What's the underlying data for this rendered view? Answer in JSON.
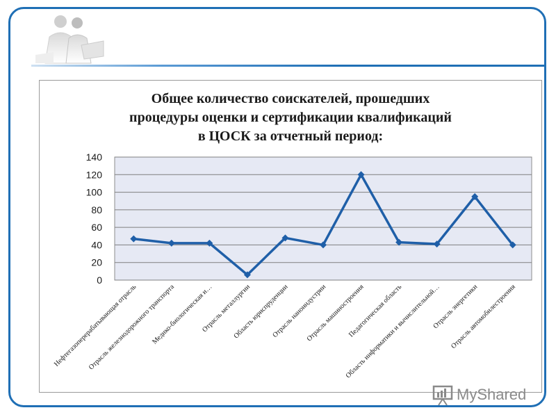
{
  "watermark": {
    "text": "MyShared"
  },
  "chart_data": {
    "type": "line",
    "title_lines": [
      "Общее количество соискателей, прошедших",
      "процедуры оценки и сертификации квалификаций",
      "в ЦОСК за отчетный период:"
    ],
    "categories": [
      "Нефтегазоперерабатывающая отрасль",
      "Отрасль железнодорожного транспорта",
      "Медико-биологическая и…",
      "Отрасль металлургии",
      "Область юриспруденции",
      "Отрасль наноиндустрии",
      "Отрасль машиностроения",
      "Педагогическая область",
      "Область информатики и вычислительной…",
      "Отрасль энергетики",
      "Отрасль автомобилестроения"
    ],
    "values": [
      47,
      42,
      42,
      6,
      48,
      40,
      120,
      43,
      41,
      95,
      40
    ],
    "ylim": [
      0,
      140
    ],
    "yticks": [
      0,
      20,
      40,
      60,
      80,
      100,
      120,
      140
    ],
    "grid": true,
    "legend": "none",
    "line_color": "#1f5fa8",
    "plot_background": "#e6e9f4"
  }
}
